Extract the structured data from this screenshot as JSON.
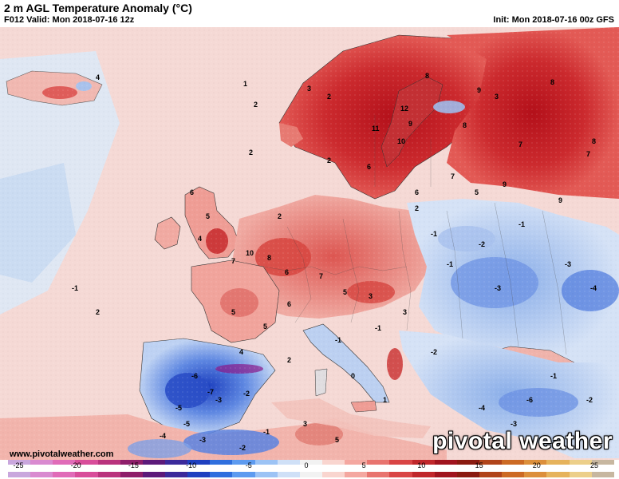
{
  "header": {
    "title": "2 m AGL Temperature Anomaly (°C)",
    "valid": "F012 Valid: Mon 2018-07-16 12z",
    "init": "Init: Mon 2018-07-16 00z GFS"
  },
  "footer": {
    "url": "www.pivotalweather.com",
    "brand": "pivotal weather"
  },
  "colorbar": {
    "ticks": [
      "-25",
      "-20",
      "-15",
      "-10",
      "-5",
      "0",
      "5",
      "10",
      "15",
      "20",
      "25"
    ],
    "colors": [
      "#c9a7dd",
      "#d98ad0",
      "#e06bb8",
      "#d84d9a",
      "#b9337d",
      "#8e1e6a",
      "#5c1a7a",
      "#3b2a9b",
      "#1f40c0",
      "#2f6fde",
      "#5d9bf0",
      "#9cc3f5",
      "#cfe0f7",
      "#f2f2f2",
      "#f9d5cf",
      "#f4a7a0",
      "#e8746f",
      "#d94545",
      "#c0272b",
      "#a0141e",
      "#8a1a10",
      "#b0441a",
      "#cc6a24",
      "#dc8f3b",
      "#e6b35c",
      "#eccf8a",
      "#c7b7a0"
    ]
  },
  "map": {
    "values": [
      {
        "t": "2"
      },
      {
        "t": "1"
      },
      {
        "t": "4"
      },
      {
        "t": "3"
      },
      {
        "t": "2"
      },
      {
        "t": "8"
      },
      {
        "t": "9"
      },
      {
        "t": "3"
      },
      {
        "t": "8"
      },
      {
        "t": "12"
      },
      {
        "t": "11"
      },
      {
        "t": "10"
      },
      {
        "t": "9"
      },
      {
        "t": "8"
      },
      {
        "t": "7"
      },
      {
        "t": "7"
      },
      {
        "t": "6"
      },
      {
        "t": "6"
      },
      {
        "t": "9"
      },
      {
        "t": "9"
      },
      {
        "t": "8"
      },
      {
        "t": "7"
      },
      {
        "t": "5"
      },
      {
        "t": "2"
      },
      {
        "t": "2"
      },
      {
        "t": "2"
      },
      {
        "t": "6"
      },
      {
        "t": "5"
      },
      {
        "t": "4"
      },
      {
        "t": "7"
      },
      {
        "t": "10"
      },
      {
        "t": "8"
      },
      {
        "t": "6"
      },
      {
        "t": "7"
      },
      {
        "t": "5"
      },
      {
        "t": "3"
      },
      {
        "t": "2"
      },
      {
        "t": "-1"
      },
      {
        "t": "-2"
      },
      {
        "t": "-1"
      },
      {
        "t": "-3"
      },
      {
        "t": "-4"
      },
      {
        "t": "-1"
      },
      {
        "t": "-3"
      },
      {
        "t": "5"
      },
      {
        "t": "5"
      },
      {
        "t": "6"
      },
      {
        "t": "4"
      },
      {
        "t": "2"
      },
      {
        "t": "-1"
      },
      {
        "t": "-1"
      },
      {
        "t": "3"
      },
      {
        "t": "-6"
      },
      {
        "t": "-7"
      },
      {
        "t": "-5"
      },
      {
        "t": "-3"
      },
      {
        "t": "-5"
      },
      {
        "t": "-2"
      },
      {
        "t": "0"
      },
      {
        "t": "1"
      },
      {
        "t": "-2"
      },
      {
        "t": "-4"
      },
      {
        "t": "-6"
      },
      {
        "t": "-1"
      },
      {
        "t": "-2"
      },
      {
        "t": "3"
      },
      {
        "t": "-1"
      },
      {
        "t": "-3"
      },
      {
        "t": "-4"
      },
      {
        "t": "-2"
      },
      {
        "t": "5"
      },
      {
        "t": "2"
      },
      {
        "t": "-1"
      },
      {
        "t": "-3"
      }
    ]
  }
}
